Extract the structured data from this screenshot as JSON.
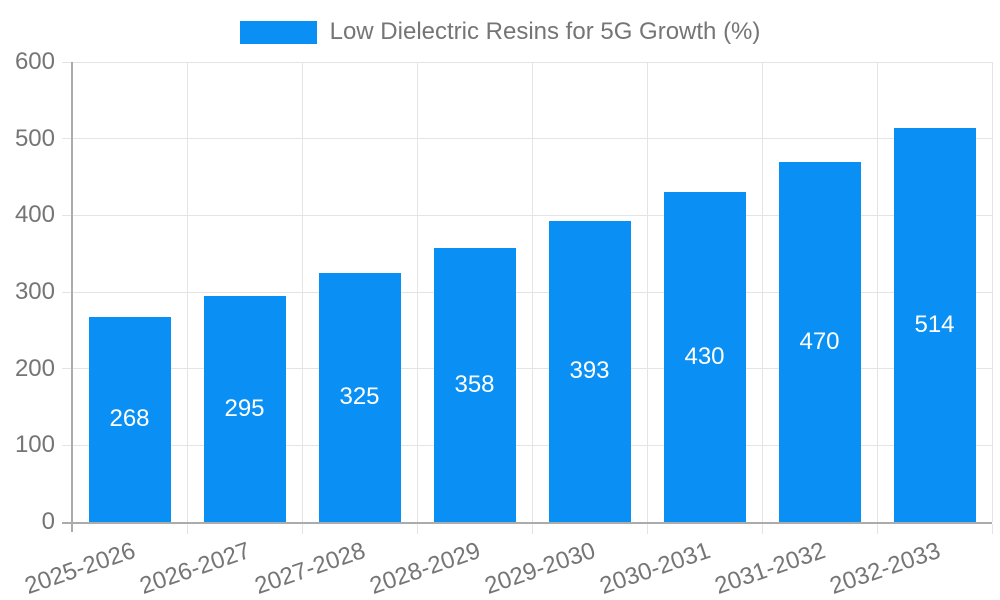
{
  "chart_data": {
    "type": "bar",
    "title": "Low Dielectric Resins for 5G Growth (%)",
    "series_name": "Low Dielectric Resins for 5G Growth (%)",
    "categories": [
      "2025-2026",
      "2026-2027",
      "2027-2028",
      "2028-2029",
      "2029-2030",
      "2030-2031",
      "2031-2032",
      "2032-2033"
    ],
    "values": [
      268,
      295,
      325,
      358,
      393,
      430,
      470,
      514
    ],
    "xlabel": "",
    "ylabel": "",
    "ylim": [
      0,
      600
    ],
    "yticks": [
      0,
      100,
      200,
      300,
      400,
      500,
      600
    ],
    "grid": true,
    "legend_position": "top-center",
    "value_label_position": "inside-center",
    "x_label_rotation_deg": -19,
    "colors": {
      "bar": "#0A90F4",
      "gridline": "#E4E4E4",
      "axis_line": "#ABABAB",
      "tick_text": "#757575",
      "value_text": "#FFFFFF",
      "background": "#FFFFFF"
    }
  }
}
